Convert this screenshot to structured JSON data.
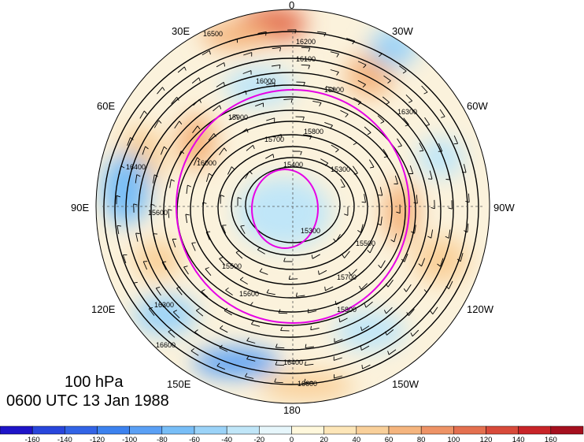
{
  "title": {
    "level": "100 hPa",
    "time": "0600 UTC 13 Jan 1988"
  },
  "longitude_labels": [
    "0",
    "30W",
    "60W",
    "90W",
    "120W",
    "150W",
    "180",
    "150E",
    "120E",
    "90E",
    "60E",
    "30E"
  ],
  "contour_labels": [
    "15300",
    "15400",
    "15500",
    "15600",
    "15700",
    "15800",
    "15900",
    "16000",
    "16100",
    "16200",
    "16300",
    "16400",
    "16500",
    "16600"
  ],
  "colorbar": {
    "ticks": [
      "-160",
      "-140",
      "-120",
      "-100",
      "-80",
      "-60",
      "-40",
      "-20",
      "0",
      "20",
      "40",
      "60",
      "80",
      "100",
      "120",
      "140",
      "160"
    ],
    "colors": [
      "#1e14c8",
      "#2846dc",
      "#3264e6",
      "#3c82ef",
      "#5aa0f5",
      "#78bef7",
      "#9bd3f8",
      "#c0e6f8",
      "#e6f6fb",
      "#fff8dc",
      "#fde6b8",
      "#f9d09a",
      "#f5b57e",
      "#ee9366",
      "#e4704f",
      "#d84a3a",
      "#c82428",
      "#a50f1e"
    ]
  },
  "colors": {
    "contour": "#000000",
    "magenta_contour": "#e600e6",
    "anomaly_positive": "#f2b27a",
    "anomaly_negative": "#7cb6ea"
  }
}
